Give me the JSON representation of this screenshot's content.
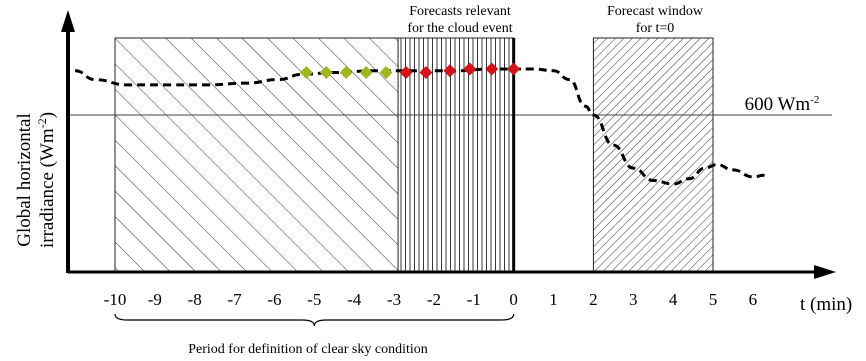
{
  "chart_data": {
    "type": "line",
    "ylabel_line1": "Global horizontal",
    "ylabel_line2": "irradiance (Wm",
    "ylabel_sup": "-2",
    "ylabel_end": ")",
    "xlabel": "t (min)",
    "xticks": [
      -10,
      -9,
      -8,
      -7,
      -6,
      -5,
      -4,
      -3,
      -2,
      -1,
      0,
      1,
      2,
      3,
      4,
      5,
      6
    ],
    "xlim": [
      -11.1,
      7.3
    ],
    "threshold": {
      "value_label": "600 Wm",
      "unit_sup": "-2"
    },
    "irradiance_curve": [
      [
        -11.0,
        0.8
      ],
      [
        -10.5,
        0.75
      ],
      [
        -9.7,
        0.72
      ],
      [
        -8.7,
        0.72
      ],
      [
        -7.7,
        0.72
      ],
      [
        -6.7,
        0.73
      ],
      [
        -5.9,
        0.75
      ],
      [
        -5.3,
        0.78
      ],
      [
        -4.5,
        0.79
      ],
      [
        -3.5,
        0.8
      ],
      [
        -2.5,
        0.8
      ],
      [
        -1.5,
        0.8
      ],
      [
        -0.5,
        0.81
      ],
      [
        0.0,
        0.81
      ],
      [
        0.5,
        0.81
      ],
      [
        1.0,
        0.8
      ],
      [
        1.4,
        0.75
      ],
      [
        1.8,
        0.6
      ],
      [
        2.0,
        0.55
      ],
      [
        2.5,
        0.38
      ],
      [
        3.0,
        0.25
      ],
      [
        3.5,
        0.18
      ],
      [
        4.0,
        0.16
      ],
      [
        4.4,
        0.19
      ],
      [
        4.8,
        0.25
      ],
      [
        5.1,
        0.27
      ],
      [
        5.5,
        0.24
      ],
      [
        6.0,
        0.2
      ],
      [
        6.3,
        0.21
      ]
    ],
    "past_points": [
      {
        "t": -5.2,
        "y": 0.79
      },
      {
        "t": -4.7,
        "y": 0.79
      },
      {
        "t": -4.2,
        "y": 0.79
      },
      {
        "t": -3.7,
        "y": 0.79
      },
      {
        "t": -3.2,
        "y": 0.79
      }
    ],
    "relevant_points": [
      {
        "t": -2.7,
        "y": 0.79
      },
      {
        "t": -2.2,
        "y": 0.79
      },
      {
        "t": -1.6,
        "y": 0.8
      },
      {
        "t": -1.1,
        "y": 0.81
      },
      {
        "t": -0.55,
        "y": 0.81
      },
      {
        "t": 0.0,
        "y": 0.81
      }
    ],
    "regions": {
      "clear_sky": {
        "from": -10,
        "to": 0,
        "label": "Period for definition of clear sky condition"
      },
      "relevant": {
        "from": -2.9,
        "to": 0,
        "label_line1": "Forecasts relevant",
        "label_line2": "for the cloud event"
      },
      "forecast_window": {
        "from": 2,
        "to": 5,
        "label_line1": "Forecast window",
        "label_line2": "for t=0"
      }
    },
    "colors": {
      "past_points": "#a3b41e",
      "relevant_points": "#d2131b",
      "line": "#000000"
    },
    "grid": false
  }
}
